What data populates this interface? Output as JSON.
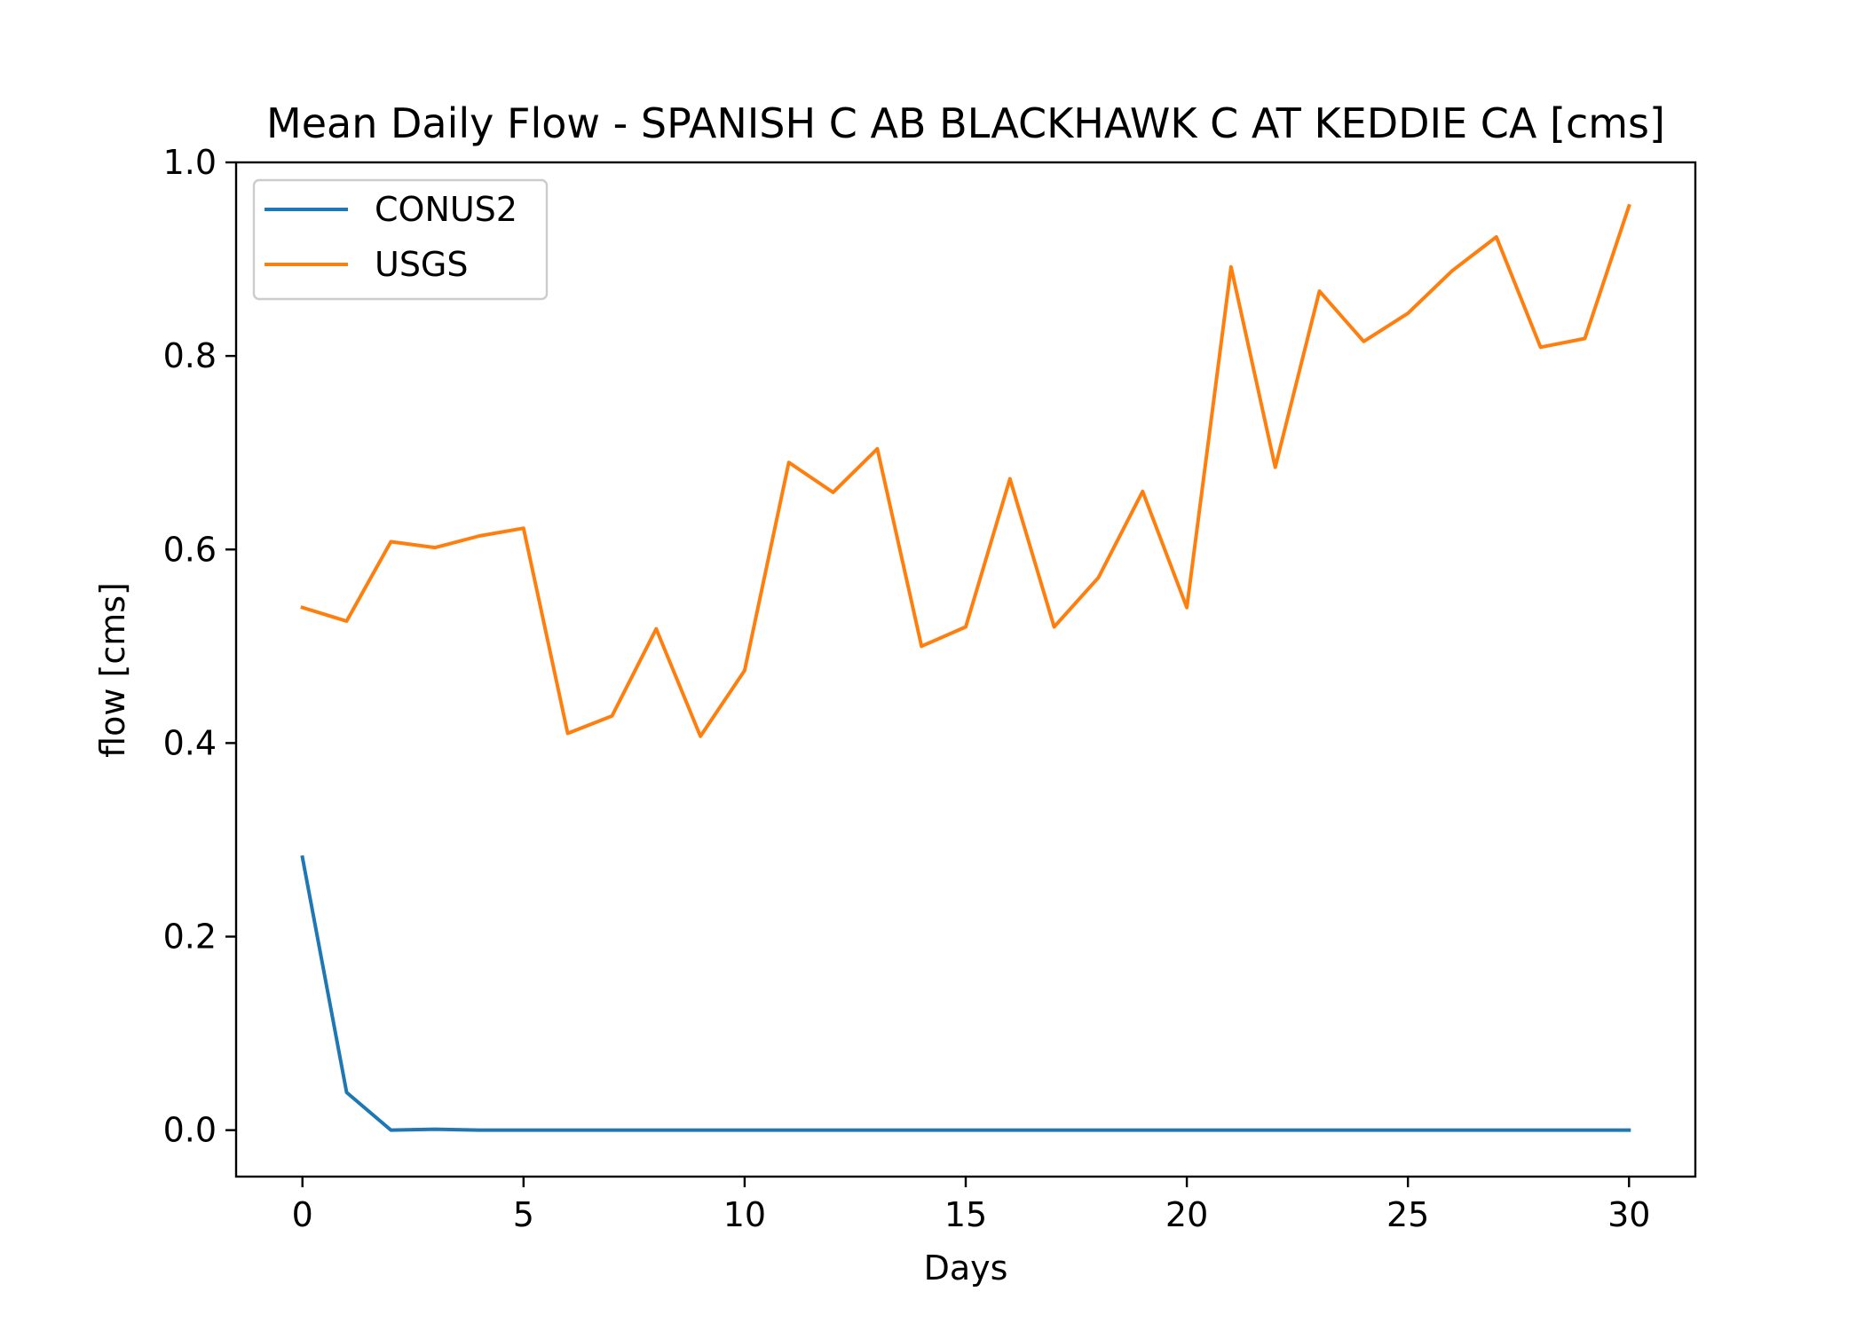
{
  "chart_data": {
    "type": "line",
    "title": "Mean Daily Flow - SPANISH C AB BLACKHAWK C AT KEDDIE CA [cms]",
    "xlabel": "Days",
    "ylabel": "flow [cms]",
    "xlim": [
      -1.5,
      31.5
    ],
    "ylim": [
      -0.048,
      1.0
    ],
    "xticks": [
      0,
      5,
      10,
      15,
      20,
      25,
      30
    ],
    "xtick_labels": [
      "0",
      "5",
      "10",
      "15",
      "20",
      "25",
      "30"
    ],
    "yticks": [
      0.0,
      0.2,
      0.4,
      0.6,
      0.8,
      1.0
    ],
    "ytick_labels": [
      "0.0",
      "0.2",
      "0.4",
      "0.6",
      "0.8",
      "1.0"
    ],
    "grid": false,
    "legend_position": "top-left",
    "x": [
      0,
      1,
      2,
      3,
      4,
      5,
      6,
      7,
      8,
      9,
      10,
      11,
      12,
      13,
      14,
      15,
      16,
      17,
      18,
      19,
      20,
      21,
      22,
      23,
      24,
      25,
      26,
      27,
      28,
      29,
      30
    ],
    "series": [
      {
        "name": "CONUS2",
        "color": "#1f77b4",
        "values": [
          0.282,
          0.039,
          0.0,
          0.001,
          0.0,
          0.0,
          0.0,
          0.0,
          0.0,
          0.0,
          0.0,
          0.0,
          0.0,
          0.0,
          0.0,
          0.0,
          0.0,
          0.0,
          0.0,
          0.0,
          0.0,
          0.0,
          0.0,
          0.0,
          0.0,
          0.0,
          0.0,
          0.0,
          0.0,
          0.0,
          0.0
        ]
      },
      {
        "name": "USGS",
        "color": "#ff7f0e",
        "values": [
          0.54,
          0.526,
          0.608,
          0.602,
          0.614,
          0.622,
          0.41,
          0.428,
          0.518,
          0.407,
          0.475,
          0.69,
          0.659,
          0.704,
          0.5,
          0.52,
          0.673,
          0.52,
          0.571,
          0.66,
          0.54,
          0.892,
          0.685,
          0.867,
          0.815,
          0.844,
          0.888,
          0.923,
          0.809,
          0.818,
          0.955
        ]
      }
    ]
  }
}
